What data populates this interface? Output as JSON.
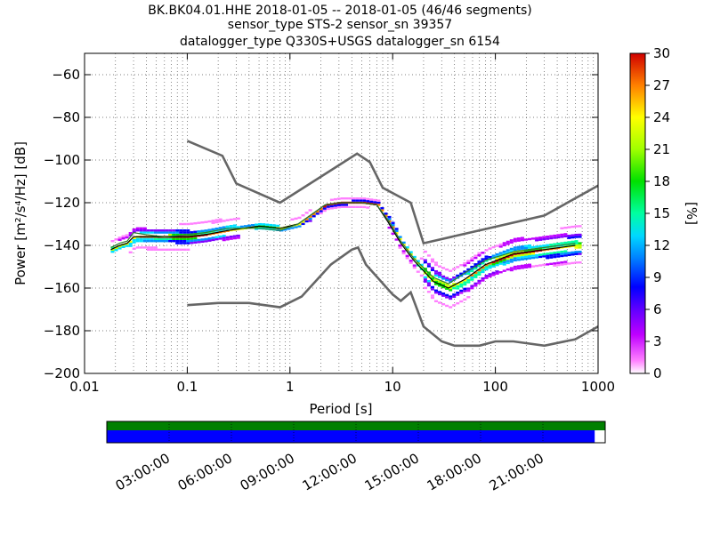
{
  "title_lines": [
    "BK.BK04.01.HHE   2018-01-05 -- 2018-01-05  (46/46 segments)",
    "sensor_type STS-2 sensor_sn 39357",
    "datalogger_type Q330S+USGS datalogger_sn 6154"
  ],
  "colors": {
    "noise_model": "#666666",
    "mode_line": "#000000",
    "mean_line": "#2e7d32",
    "coverage_bar": "#0000ff",
    "data_bar": "#008000"
  },
  "chart_data": {
    "type": "heatmap",
    "title": "BK.BK04.01.HHE   2018-01-05 -- 2018-01-05  (46/46 segments)",
    "xlabel": "Period [s]",
    "ylabel": "Power [m²/s⁴/Hz] [dB]",
    "xscale": "log",
    "xlim": [
      0.01,
      1000
    ],
    "ylim": [
      -200,
      -50
    ],
    "xticks": [
      "0.01",
      "0.1",
      "1",
      "10",
      "100",
      "1000"
    ],
    "yticks": [
      "−60",
      "−80",
      "−100",
      "−120",
      "−140",
      "−160",
      "−180",
      "−200"
    ],
    "colorbar": {
      "label": "[%]",
      "range": [
        0,
        30
      ],
      "ticks": [
        "0",
        "3",
        "6",
        "9",
        "12",
        "15",
        "18",
        "21",
        "24",
        "27",
        "30"
      ]
    },
    "grid": true,
    "series": [
      {
        "points": [
          [
            0.1,
            -91
          ],
          [
            0.22,
            -98
          ],
          [
            0.3,
            -111
          ],
          [
            0.8,
            -120
          ],
          [
            4.5,
            -97
          ],
          [
            6,
            -101
          ],
          [
            8,
            -113
          ],
          [
            15,
            -120
          ],
          [
            20,
            -139
          ],
          [
            300,
            -126
          ],
          [
            1000,
            -112
          ]
        ]
      },
      {
        "points": [
          [
            0.1,
            -168
          ],
          [
            0.2,
            -167
          ],
          [
            0.4,
            -167
          ],
          [
            0.8,
            -169
          ],
          [
            1.3,
            -164
          ],
          [
            2.5,
            -149
          ],
          [
            4,
            -142
          ],
          [
            4.6,
            -141
          ],
          [
            5.5,
            -149
          ],
          [
            10,
            -163
          ],
          [
            12,
            -166
          ],
          [
            15,
            -162
          ],
          [
            20,
            -178
          ],
          [
            30,
            -185
          ],
          [
            40,
            -187
          ],
          [
            70,
            -187
          ],
          [
            100,
            -185
          ],
          [
            150,
            -185
          ],
          [
            300,
            -187
          ],
          [
            600,
            -184
          ],
          [
            1000,
            -178
          ]
        ]
      },
      {
        "points": [
          [
            0.018,
            -142
          ],
          [
            0.022,
            -140
          ],
          [
            0.026,
            -139
          ],
          [
            0.03,
            -136
          ],
          [
            0.04,
            -136
          ],
          [
            0.06,
            -136
          ],
          [
            0.1,
            -136
          ],
          [
            0.15,
            -135
          ],
          [
            0.25,
            -133
          ],
          [
            0.5,
            -131
          ],
          [
            0.8,
            -132
          ],
          [
            1.2,
            -130
          ],
          [
            2.2,
            -121
          ],
          [
            3,
            -120
          ],
          [
            5,
            -120
          ],
          [
            7,
            -121
          ],
          [
            9,
            -129
          ],
          [
            12,
            -139
          ],
          [
            16,
            -147
          ],
          [
            25,
            -157
          ],
          [
            35,
            -160
          ],
          [
            50,
            -156
          ],
          [
            80,
            -149
          ],
          [
            150,
            -144
          ],
          [
            300,
            -142
          ],
          [
            600,
            -140
          ]
        ]
      },
      {
        "points": [
          [
            0.018,
            -141
          ],
          [
            0.022,
            -139
          ],
          [
            0.026,
            -138
          ],
          [
            0.03,
            -134
          ],
          [
            0.04,
            -135
          ],
          [
            0.06,
            -136
          ],
          [
            0.1,
            -135
          ],
          [
            0.15,
            -134
          ],
          [
            0.25,
            -132
          ],
          [
            0.5,
            -132
          ],
          [
            0.8,
            -133
          ],
          [
            1.2,
            -130
          ],
          [
            2.2,
            -121
          ],
          [
            3,
            -120
          ],
          [
            5,
            -120
          ],
          [
            7,
            -121
          ],
          [
            9,
            -128
          ],
          [
            12,
            -138
          ],
          [
            16,
            -146
          ],
          [
            25,
            -155
          ],
          [
            35,
            -158
          ],
          [
            50,
            -153
          ],
          [
            80,
            -147
          ],
          [
            150,
            -143
          ],
          [
            300,
            -141
          ],
          [
            600,
            -139
          ]
        ]
      }
    ]
  },
  "timeline": {
    "ticks": [
      "03:00:00",
      "06:00:00",
      "09:00:00",
      "12:00:00",
      "15:00:00",
      "18:00:00",
      "21:00:00"
    ],
    "coverage_fraction": 0.979
  }
}
